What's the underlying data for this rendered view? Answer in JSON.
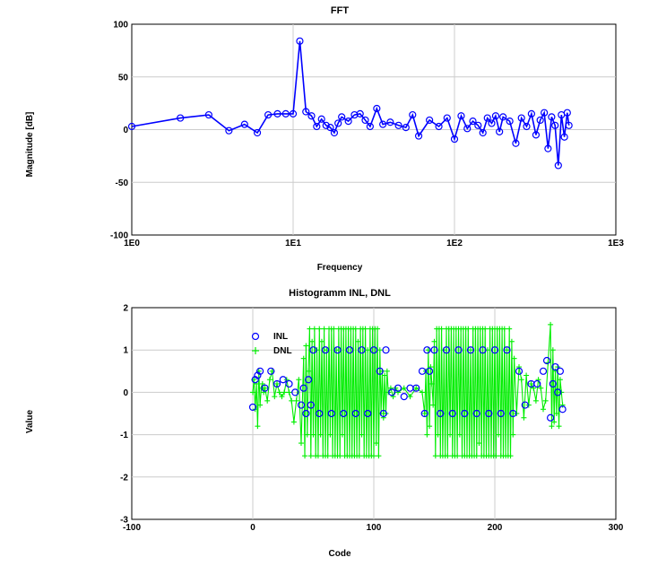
{
  "chart_data": [
    {
      "type": "line",
      "title": "FFT",
      "xlabel": "Frequency",
      "ylabel": "Magnitude [dB]",
      "xscale": "log",
      "xlim": [
        1,
        1000
      ],
      "ylim": [
        -100,
        100
      ],
      "xtick_labels": [
        "1E0",
        "1E1",
        "1E2",
        "1E3"
      ],
      "ytick_labels": [
        "100",
        "50",
        "0",
        "-50",
        "-100"
      ],
      "grid": true,
      "legend": "none",
      "color": "#0000ff",
      "marker": "circle",
      "series": [
        {
          "x": [
            1,
            2,
            3,
            4,
            5,
            6,
            7,
            8,
            9,
            10,
            11,
            12,
            13,
            14,
            15,
            16,
            17,
            18,
            19,
            20,
            22,
            24,
            26,
            28,
            30,
            33,
            36,
            40,
            45,
            50,
            55,
            60,
            70,
            80,
            90,
            100,
            110,
            120,
            130,
            140,
            150,
            160,
            170,
            180,
            190,
            200,
            220,
            240,
            260,
            280,
            300,
            320,
            340,
            360,
            380,
            400,
            420,
            440,
            460,
            480,
            500,
            512
          ],
          "y": [
            3,
            11,
            14,
            -1,
            5,
            -3,
            14,
            15,
            15,
            15,
            84,
            17,
            13,
            3,
            10,
            4,
            2,
            -3,
            6,
            12,
            8,
            14,
            15,
            9,
            3,
            20,
            5,
            7,
            4,
            2,
            14,
            -6,
            9,
            3,
            11,
            -9,
            13,
            1,
            8,
            4,
            -3,
            11,
            6,
            13,
            -2,
            12,
            8,
            -13,
            11,
            3,
            15,
            -5,
            9,
            16,
            -18,
            12,
            4,
            -34,
            14,
            -7,
            16,
            4
          ]
        }
      ]
    },
    {
      "type": "scatter",
      "title": "Histogramm INL, DNL",
      "xlabel": "Code",
      "ylabel": "Value",
      "xlim": [
        -100,
        300
      ],
      "ylim": [
        -3,
        2
      ],
      "xtick_labels": [
        "-100",
        "0",
        "100",
        "200",
        "300"
      ],
      "ytick_labels": [
        "2",
        "1",
        "0",
        "-1",
        "-2",
        "-3"
      ],
      "grid": true,
      "legend": "top-left of plot area",
      "series": [
        {
          "name": "INL",
          "marker": "circle",
          "color": "#0000ff",
          "x": [
            0,
            2,
            4,
            6,
            10,
            15,
            20,
            25,
            30,
            35,
            40,
            42,
            44,
            46,
            48,
            50,
            55,
            60,
            65,
            70,
            75,
            80,
            85,
            90,
            95,
            100,
            105,
            108,
            110,
            115,
            120,
            125,
            130,
            135,
            140,
            142,
            144,
            146,
            150,
            155,
            160,
            165,
            170,
            175,
            180,
            185,
            190,
            195,
            200,
            205,
            210,
            215,
            220,
            225,
            230,
            235,
            240,
            243,
            246,
            248,
            250,
            252,
            254,
            256
          ],
          "y": [
            -0.35,
            0.3,
            0.4,
            0.5,
            0.1,
            0.5,
            0.2,
            0.3,
            0.2,
            0.0,
            -0.3,
            0.1,
            -0.5,
            0.3,
            -0.3,
            1.0,
            -0.5,
            1.0,
            -0.5,
            1.0,
            -0.5,
            1.0,
            -0.5,
            1.0,
            -0.5,
            1.0,
            0.5,
            -0.5,
            1.0,
            0.0,
            0.1,
            -0.1,
            0.1,
            0.1,
            0.5,
            -0.5,
            1.0,
            0.5,
            1.0,
            -0.5,
            1.0,
            -0.5,
            1.0,
            -0.5,
            1.0,
            -0.5,
            1.0,
            -0.5,
            1.0,
            -0.5,
            1.0,
            -0.5,
            0.5,
            -0.3,
            0.2,
            0.2,
            0.5,
            0.75,
            -0.6,
            0.2,
            0.6,
            0.0,
            0.5,
            -0.4
          ]
        },
        {
          "name": "DNL",
          "marker": "plus",
          "color": "#00ee00",
          "x": [
            0,
            1,
            2,
            3,
            4,
            5,
            6,
            7,
            8,
            9,
            10,
            12,
            14,
            16,
            18,
            20,
            22,
            24,
            26,
            28,
            30,
            32,
            34,
            36,
            38,
            40,
            42,
            43,
            44,
            45,
            46,
            47,
            48,
            49,
            50,
            51,
            52,
            53,
            54,
            55,
            56,
            57,
            58,
            59,
            60,
            61,
            62,
            63,
            64,
            65,
            66,
            67,
            68,
            69,
            70,
            71,
            72,
            73,
            74,
            75,
            76,
            77,
            78,
            79,
            80,
            81,
            82,
            83,
            84,
            85,
            86,
            87,
            88,
            89,
            90,
            91,
            92,
            93,
            94,
            95,
            96,
            97,
            98,
            99,
            100,
            101,
            102,
            103,
            104,
            105,
            106,
            107,
            108,
            109,
            110,
            111,
            112,
            114,
            116,
            118,
            120,
            125,
            130,
            135,
            140,
            142,
            143,
            144,
            145,
            146,
            147,
            148,
            149,
            150,
            151,
            152,
            153,
            154,
            155,
            156,
            157,
            158,
            159,
            160,
            161,
            162,
            163,
            164,
            165,
            166,
            167,
            168,
            169,
            170,
            171,
            172,
            173,
            174,
            175,
            176,
            177,
            178,
            179,
            180,
            181,
            182,
            183,
            184,
            185,
            186,
            187,
            188,
            189,
            190,
            191,
            192,
            193,
            194,
            195,
            196,
            197,
            198,
            199,
            200,
            201,
            202,
            203,
            204,
            205,
            206,
            207,
            208,
            209,
            210,
            211,
            212,
            213,
            214,
            215,
            216,
            218,
            220,
            222,
            224,
            226,
            228,
            230,
            232,
            234,
            236,
            238,
            240,
            242,
            244,
            246,
            247,
            248,
            249,
            250,
            251,
            252,
            253,
            254,
            255,
            256
          ],
          "y": [
            0.0,
            0.3,
            -0.4,
            0.2,
            -0.8,
            0.5,
            -0.3,
            0.1,
            0.2,
            0.0,
            0.1,
            -0.2,
            0.3,
            0.5,
            -0.1,
            0.2,
            0.0,
            -0.1,
            0.0,
            0.3,
            0.0,
            -0.2,
            -0.7,
            -0.2,
            0.3,
            -1.2,
            0.8,
            -1.5,
            1.1,
            -1.0,
            0.5,
            1.5,
            -1.5,
            1.2,
            -1.0,
            1.5,
            -1.5,
            1.0,
            -1.5,
            1.5,
            -1.0,
            1.2,
            -1.5,
            1.5,
            -1.5,
            1.0,
            -1.5,
            1.5,
            -1.0,
            1.5,
            -1.5,
            1.5,
            -1.5,
            1.0,
            -1.5,
            1.5,
            -1.5,
            1.5,
            -1.0,
            1.5,
            -1.5,
            1.5,
            -1.5,
            1.5,
            -1.5,
            1.5,
            -1.5,
            1.5,
            -1.5,
            1.5,
            -1.5,
            1.2,
            -1.5,
            1.5,
            -1.0,
            1.5,
            -1.5,
            1.5,
            -1.5,
            1.0,
            -1.5,
            1.5,
            -1.5,
            1.5,
            -1.5,
            1.5,
            -1.2,
            1.5,
            -1.5,
            1.0,
            -0.5,
            0.5,
            -0.6,
            0.4,
            -0.5,
            0.5,
            0.0,
            0.1,
            -0.1,
            0.1,
            0.0,
            0.1,
            -0.1,
            0.1,
            0.0,
            -0.5,
            0.5,
            -1.0,
            1.0,
            -0.8,
            0.6,
            0.2,
            -0.3,
            1.2,
            -1.5,
            1.5,
            -1.0,
            1.5,
            -1.5,
            1.5,
            -1.5,
            1.0,
            -1.5,
            1.5,
            -1.5,
            1.5,
            -1.0,
            1.5,
            -1.5,
            1.5,
            -1.5,
            1.5,
            -1.5,
            1.5,
            -1.0,
            1.5,
            -1.5,
            1.5,
            -1.5,
            1.5,
            -1.5,
            1.5,
            -1.5,
            1.0,
            -1.5,
            1.5,
            -1.5,
            1.5,
            -1.5,
            1.5,
            -1.2,
            1.5,
            -1.5,
            1.5,
            -1.5,
            1.5,
            -1.5,
            1.0,
            -1.5,
            1.5,
            -1.5,
            1.5,
            -1.5,
            1.5,
            -1.5,
            1.5,
            -1.0,
            1.5,
            -1.5,
            1.5,
            -1.5,
            1.5,
            -1.5,
            1.0,
            -1.5,
            1.5,
            -1.5,
            1.2,
            -1.0,
            0.8,
            -0.5,
            0.6,
            0.3,
            -0.6,
            0.4,
            -0.3,
            0.2,
            0.1,
            -0.2,
            0.3,
            0.1,
            -0.4,
            -0.2,
            0.7,
            1.6,
            -0.8,
            1.0,
            -0.7,
            0.5,
            -0.5,
            0.6,
            -0.8,
            0.3,
            0.0,
            -0.3
          ]
        }
      ]
    }
  ]
}
